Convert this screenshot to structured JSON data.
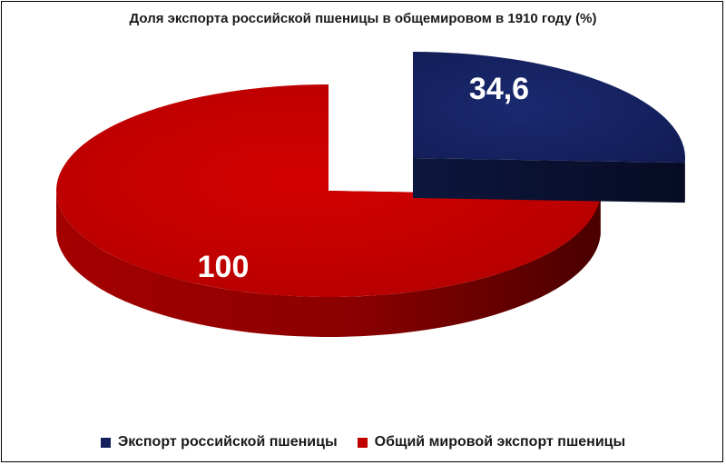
{
  "chart_data": {
    "type": "pie",
    "title": "Доля экспорта российской пшеницы в общемировом в 1910 году (%)",
    "style": "3d-exploded",
    "legend_position": "bottom",
    "series": [
      {
        "name": "Экспорт российской пшеницы",
        "value": 34.6,
        "label": "34,6",
        "color": "#14215e"
      },
      {
        "name": "Общий мировой экспорт пшеницы",
        "value": 100,
        "label": "100",
        "color": "#c10000"
      }
    ]
  }
}
